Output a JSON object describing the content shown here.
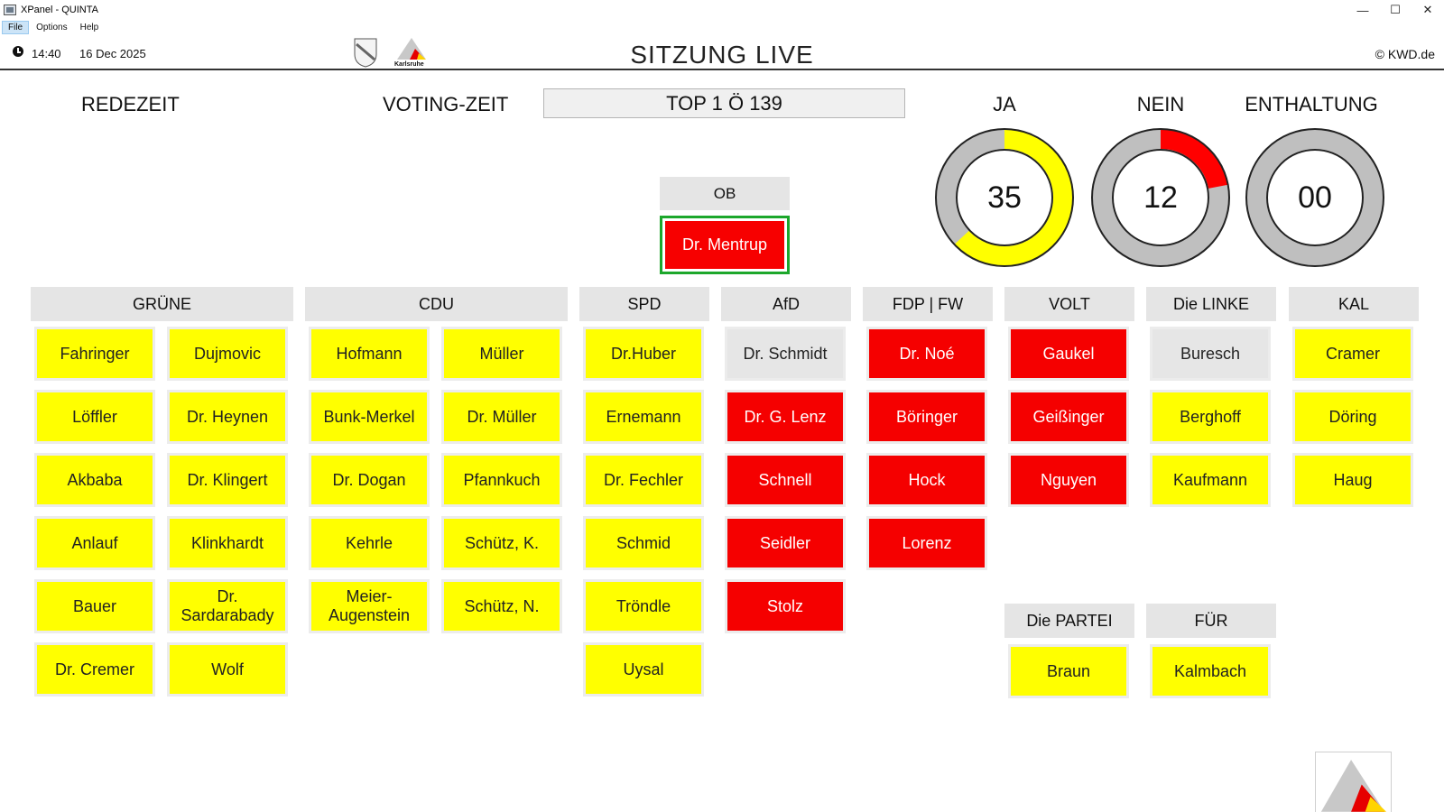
{
  "window": {
    "title": "XPanel - QUINTA",
    "controls": [
      "—",
      "☐",
      "✕"
    ]
  },
  "menu": [
    "File",
    "Options",
    "Help"
  ],
  "header": {
    "time": "14:40",
    "date": "16 Dec 2025",
    "title": "SITZUNG LIVE",
    "copyright": "© KWD.de",
    "logo_text": "Karlsruhe"
  },
  "labels": {
    "redezeit": "REDEZEIT",
    "voting_zeit": "VOTING-ZEIT",
    "top": "TOP 1 Ö 139"
  },
  "votes": {
    "ja": {
      "label": "JA",
      "value": "35",
      "fraction": 0.63,
      "color": "#ffff00"
    },
    "nein": {
      "label": "NEIN",
      "value": "12",
      "fraction": 0.22,
      "color": "#ff0000"
    },
    "enthaltung": {
      "label": "ENTHALTUNG",
      "value": "00",
      "fraction": 0.0,
      "color": "#ffff00"
    }
  },
  "ob": {
    "label": "OB",
    "member": "Dr. Mentrup",
    "status": "red"
  },
  "parties": [
    {
      "name": "GRÜNE",
      "members": [
        {
          "name": "Fahringer",
          "status": "yellow"
        },
        {
          "name": "Dujmovic",
          "status": "yellow"
        },
        {
          "name": "Löffler",
          "status": "yellow"
        },
        {
          "name": "Dr. Heynen",
          "status": "yellow"
        },
        {
          "name": "Akbaba",
          "status": "yellow"
        },
        {
          "name": "Dr. Klingert",
          "status": "yellow"
        },
        {
          "name": "Anlauf",
          "status": "yellow"
        },
        {
          "name": "Klinkhardt",
          "status": "yellow"
        },
        {
          "name": "Bauer",
          "status": "yellow"
        },
        {
          "name": "Dr.\nSardarabady",
          "status": "yellow"
        },
        {
          "name": "Dr. Cremer",
          "status": "yellow"
        },
        {
          "name": "Wolf",
          "status": "yellow"
        }
      ]
    },
    {
      "name": "CDU",
      "members": [
        {
          "name": "Hofmann",
          "status": "yellow"
        },
        {
          "name": "Müller",
          "status": "yellow"
        },
        {
          "name": "Bunk-Merkel",
          "status": "yellow"
        },
        {
          "name": "Dr. Müller",
          "status": "yellow"
        },
        {
          "name": "Dr. Dogan",
          "status": "yellow"
        },
        {
          "name": "Pfannkuch",
          "status": "yellow"
        },
        {
          "name": "Kehrle",
          "status": "yellow"
        },
        {
          "name": "Schütz, K.",
          "status": "yellow"
        },
        {
          "name": "Meier-\nAugenstein",
          "status": "yellow"
        },
        {
          "name": "Schütz, N.",
          "status": "yellow"
        }
      ]
    },
    {
      "name": "SPD",
      "members": [
        {
          "name": "Dr.Huber",
          "status": "yellow"
        },
        {
          "name": "Ernemann",
          "status": "yellow"
        },
        {
          "name": "Dr. Fechler",
          "status": "yellow"
        },
        {
          "name": "Schmid",
          "status": "yellow"
        },
        {
          "name": "Tröndle",
          "status": "yellow"
        },
        {
          "name": "Uysal",
          "status": "yellow"
        }
      ]
    },
    {
      "name": "AfD",
      "members": [
        {
          "name": "Dr. Schmidt",
          "status": "grey"
        },
        {
          "name": "Dr. G. Lenz",
          "status": "red"
        },
        {
          "name": "Schnell",
          "status": "red"
        },
        {
          "name": "Seidler",
          "status": "red"
        },
        {
          "name": "Stolz",
          "status": "red"
        }
      ]
    },
    {
      "name": "FDP | FW",
      "members": [
        {
          "name": "Dr. Noé",
          "status": "red"
        },
        {
          "name": "Böringer",
          "status": "red"
        },
        {
          "name": "Hock",
          "status": "red"
        },
        {
          "name": "Lorenz",
          "status": "red"
        }
      ]
    },
    {
      "name": "VOLT",
      "members": [
        {
          "name": "Gaukel",
          "status": "red"
        },
        {
          "name": "Geißinger",
          "status": "red"
        },
        {
          "name": "Nguyen",
          "status": "red"
        }
      ]
    },
    {
      "name": "Die LINKE",
      "members": [
        {
          "name": "Buresch",
          "status": "grey"
        },
        {
          "name": "Berghoff",
          "status": "yellow"
        },
        {
          "name": "Kaufmann",
          "status": "yellow"
        }
      ]
    },
    {
      "name": "KAL",
      "members": [
        {
          "name": "Cramer",
          "status": "yellow"
        },
        {
          "name": "Döring",
          "status": "yellow"
        },
        {
          "name": "Haug",
          "status": "yellow"
        }
      ]
    },
    {
      "name": "Die PARTEI",
      "members": [
        {
          "name": "Braun",
          "status": "yellow"
        }
      ]
    },
    {
      "name": "FÜR",
      "members": [
        {
          "name": "Kalmbach",
          "status": "yellow"
        }
      ]
    }
  ]
}
